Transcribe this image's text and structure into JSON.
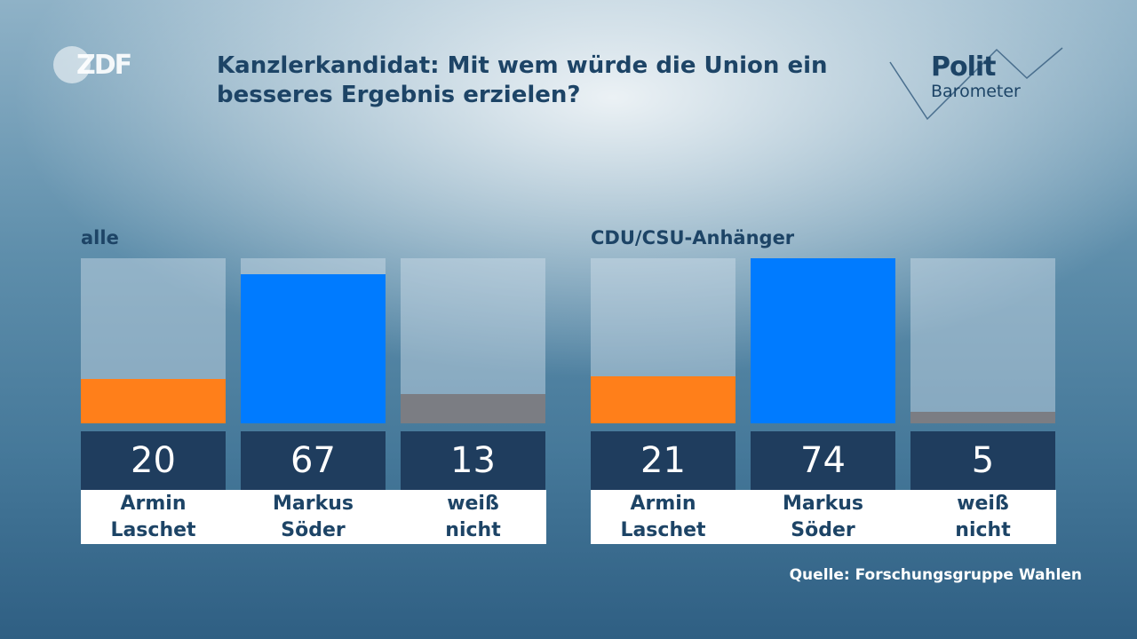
{
  "branding": {
    "broadcaster": "ZDF",
    "show_line1": "Polit",
    "show_line2": "Barometer"
  },
  "colors": {
    "laschet": "#ff7f1a",
    "soeder": "#007bff",
    "weiss_nicht": "#7b7d83"
  },
  "chart_data": {
    "type": "bar",
    "title": "Kanzlerkandidat: Mit wem würde die Union ein besseres Ergebnis erzielen?",
    "ylim": [
      0,
      74
    ],
    "groups": [
      {
        "label": "alle",
        "categories": [
          [
            "Armin",
            "Laschet"
          ],
          [
            "Markus",
            "Söder"
          ],
          [
            "weiß",
            "nicht"
          ]
        ],
        "values": [
          20,
          67,
          13
        ]
      },
      {
        "label": "CDU/CSU-Anhänger",
        "categories": [
          [
            "Armin",
            "Laschet"
          ],
          [
            "Markus",
            "Söder"
          ],
          [
            "weiß",
            "nicht"
          ]
        ],
        "values": [
          21,
          74,
          5
        ]
      }
    ],
    "source": "Quelle: Forschungsgruppe Wahlen"
  }
}
